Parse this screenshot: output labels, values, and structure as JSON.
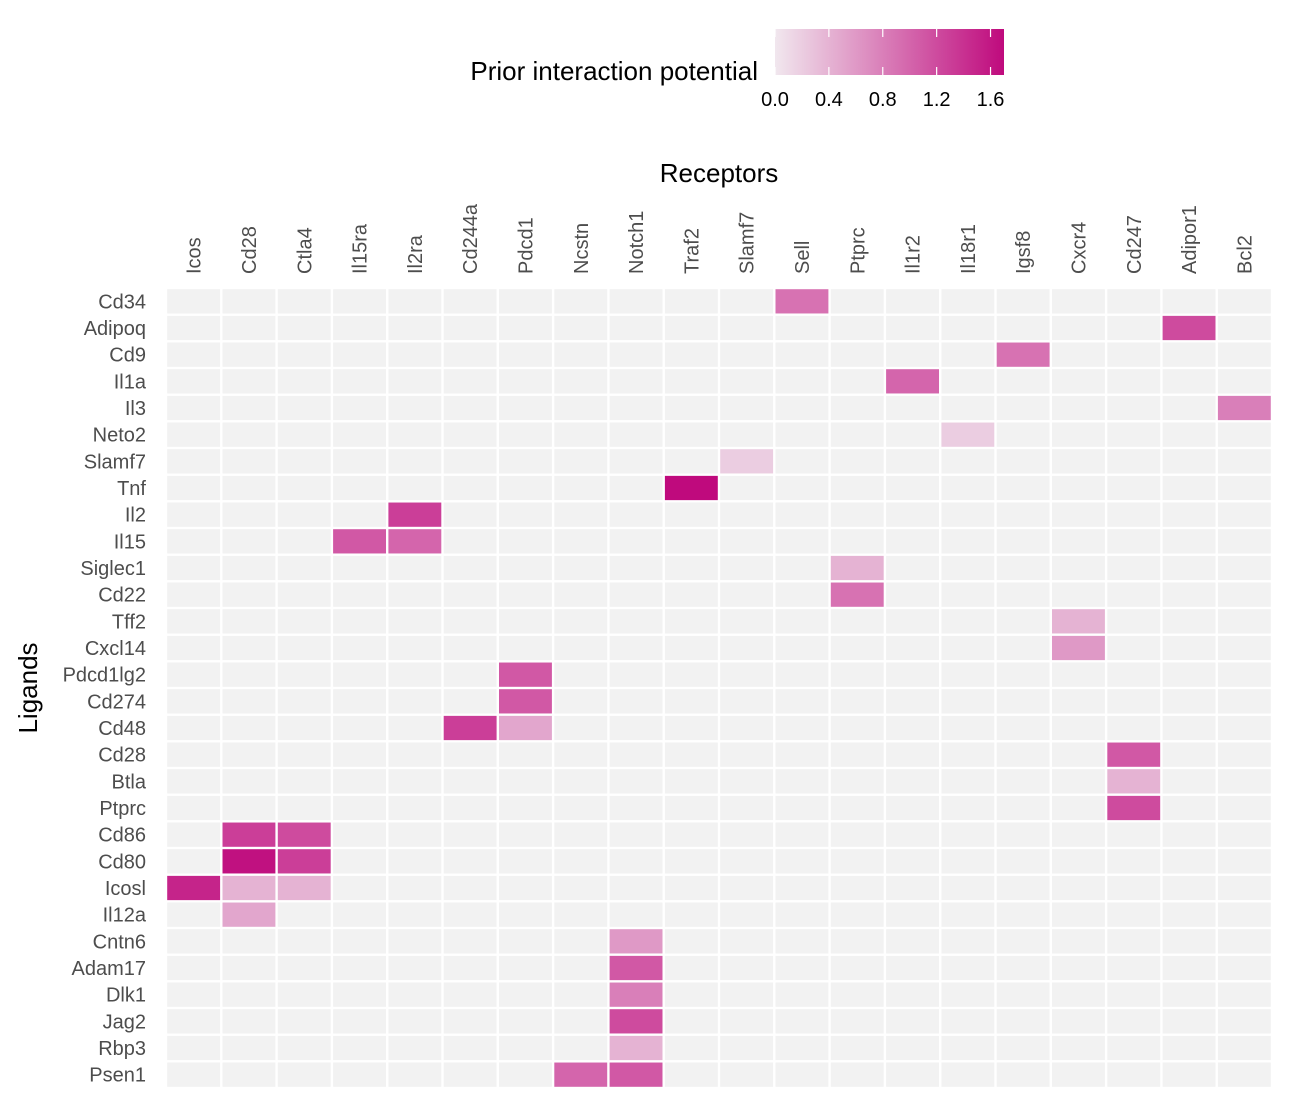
{
  "chart_data": {
    "type": "heatmap",
    "title": "",
    "xlabel": "Receptors",
    "ylabel": "Ligands",
    "legend": {
      "title": "Prior interaction potential",
      "ticks": [
        "0.0",
        "0.4",
        "0.8",
        "1.2",
        "1.6"
      ],
      "range": [
        0,
        1.7
      ],
      "low_color": "#f1e7ee",
      "high_color": "#bf0a7d",
      "placement": "top"
    },
    "empty_color": "#f2f2f2",
    "receptors": [
      "Icos",
      "Cd28",
      "Ctla4",
      "Il15ra",
      "Il2ra",
      "Cd244a",
      "Pdcd1",
      "Ncstn",
      "Notch1",
      "Traf2",
      "Slamf7",
      "Sell",
      "Ptprc",
      "Il1r2",
      "Il18r1",
      "Igsf8",
      "Cxcr4",
      "Cd247",
      "Adipor1",
      "Bcl2"
    ],
    "ligands": [
      "Cd34",
      "Adipoq",
      "Cd9",
      "Il1a",
      "Il3",
      "Neto2",
      "Slamf7",
      "Tnf",
      "Il2",
      "Il15",
      "Siglec1",
      "Cd22",
      "Tff2",
      "Cxcl14",
      "Pdcd1lg2",
      "Cd274",
      "Cd48",
      "Cd28",
      "Btla",
      "Ptprc",
      "Cd86",
      "Cd80",
      "Icosl",
      "Il12a",
      "Cntn6",
      "Adam17",
      "Dlk1",
      "Jag2",
      "Rbp3",
      "Psen1"
    ],
    "cells": [
      {
        "ligand": "Cd34",
        "receptor": "Sell",
        "value": 0.9
      },
      {
        "ligand": "Adipoq",
        "receptor": "Adipor1",
        "value": 1.2
      },
      {
        "ligand": "Cd9",
        "receptor": "Igsf8",
        "value": 0.9
      },
      {
        "ligand": "Il1a",
        "receptor": "Il1r2",
        "value": 1.0
      },
      {
        "ligand": "Il3",
        "receptor": "Bcl2",
        "value": 0.8
      },
      {
        "ligand": "Neto2",
        "receptor": "Il18r1",
        "value": 0.2
      },
      {
        "ligand": "Slamf7",
        "receptor": "Slamf7",
        "value": 0.2
      },
      {
        "ligand": "Tnf",
        "receptor": "Traf2",
        "value": 1.7
      },
      {
        "ligand": "Il2",
        "receptor": "Il2ra",
        "value": 1.3
      },
      {
        "ligand": "Il15",
        "receptor": "Il15ra",
        "value": 1.1
      },
      {
        "ligand": "Il15",
        "receptor": "Il2ra",
        "value": 1.0
      },
      {
        "ligand": "Siglec1",
        "receptor": "Ptprc",
        "value": 0.4
      },
      {
        "ligand": "Cd22",
        "receptor": "Ptprc",
        "value": 0.9
      },
      {
        "ligand": "Tff2",
        "receptor": "Cxcr4",
        "value": 0.4
      },
      {
        "ligand": "Cxcl14",
        "receptor": "Cxcr4",
        "value": 0.6
      },
      {
        "ligand": "Pdcd1lg2",
        "receptor": "Pdcd1",
        "value": 1.1
      },
      {
        "ligand": "Cd274",
        "receptor": "Pdcd1",
        "value": 1.1
      },
      {
        "ligand": "Cd48",
        "receptor": "Cd244a",
        "value": 1.3
      },
      {
        "ligand": "Cd48",
        "receptor": "Pdcd1",
        "value": 0.5
      },
      {
        "ligand": "Cd28",
        "receptor": "Cd247",
        "value": 1.1
      },
      {
        "ligand": "Btla",
        "receptor": "Cd247",
        "value": 0.4
      },
      {
        "ligand": "Ptprc",
        "receptor": "Cd247",
        "value": 1.2
      },
      {
        "ligand": "Cd86",
        "receptor": "Cd28",
        "value": 1.3
      },
      {
        "ligand": "Cd86",
        "receptor": "Ctla4",
        "value": 1.2
      },
      {
        "ligand": "Cd80",
        "receptor": "Cd28",
        "value": 1.65
      },
      {
        "ligand": "Cd80",
        "receptor": "Ctla4",
        "value": 1.3
      },
      {
        "ligand": "Icosl",
        "receptor": "Icos",
        "value": 1.5
      },
      {
        "ligand": "Icosl",
        "receptor": "Cd28",
        "value": 0.4
      },
      {
        "ligand": "Icosl",
        "receptor": "Ctla4",
        "value": 0.4
      },
      {
        "ligand": "Il12a",
        "receptor": "Cd28",
        "value": 0.5
      },
      {
        "ligand": "Cntn6",
        "receptor": "Notch1",
        "value": 0.6
      },
      {
        "ligand": "Adam17",
        "receptor": "Notch1",
        "value": 1.1
      },
      {
        "ligand": "Dlk1",
        "receptor": "Notch1",
        "value": 0.8
      },
      {
        "ligand": "Jag2",
        "receptor": "Notch1",
        "value": 1.2
      },
      {
        "ligand": "Rbp3",
        "receptor": "Notch1",
        "value": 0.4
      },
      {
        "ligand": "Psen1",
        "receptor": "Ncstn",
        "value": 1.0
      },
      {
        "ligand": "Psen1",
        "receptor": "Notch1",
        "value": 1.1
      }
    ]
  }
}
